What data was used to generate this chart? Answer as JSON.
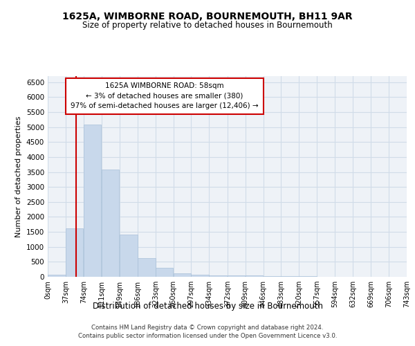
{
  "title_line1": "1625A, WIMBORNE ROAD, BOURNEMOUTH, BH11 9AR",
  "title_line2": "Size of property relative to detached houses in Bournemouth",
  "xlabel": "Distribution of detached houses by size in Bournemouth",
  "ylabel": "Number of detached properties",
  "bar_color": "#c8d8eb",
  "bar_edge_color": "#a8c0d8",
  "annotation_line_color": "#cc0000",
  "annotation_box_color": "#cc0000",
  "annotation_text_line1": "1625A WIMBORNE ROAD: 58sqm",
  "annotation_text_line2": "← 3% of detached houses are smaller (380)",
  "annotation_text_line3": "97% of semi-detached houses are larger (12,406) →",
  "property_size": 58,
  "bin_edges": [
    0,
    37,
    74,
    111,
    149,
    186,
    223,
    260,
    297,
    334,
    372,
    409,
    446,
    483,
    520,
    557,
    594,
    632,
    669,
    706,
    743
  ],
  "bin_labels": [
    "0sqm",
    "37sqm",
    "74sqm",
    "111sqm",
    "149sqm",
    "186sqm",
    "223sqm",
    "260sqm",
    "297sqm",
    "334sqm",
    "372sqm",
    "409sqm",
    "446sqm",
    "483sqm",
    "520sqm",
    "557sqm",
    "594sqm",
    "632sqm",
    "669sqm",
    "706sqm",
    "743sqm"
  ],
  "bar_heights": [
    75,
    1625,
    5075,
    3575,
    1400,
    625,
    300,
    125,
    75,
    50,
    40,
    35,
    30,
    20,
    15,
    10,
    8,
    5,
    5,
    5
  ],
  "ylim": [
    0,
    6700
  ],
  "yticks": [
    0,
    500,
    1000,
    1500,
    2000,
    2500,
    3000,
    3500,
    4000,
    4500,
    5000,
    5500,
    6000,
    6500
  ],
  "grid_color": "#d0dce8",
  "background_color": "#eef2f7",
  "footer_line1": "Contains HM Land Registry data © Crown copyright and database right 2024.",
  "footer_line2": "Contains public sector information licensed under the Open Government Licence v3.0.",
  "fig_bg_color": "#ffffff"
}
